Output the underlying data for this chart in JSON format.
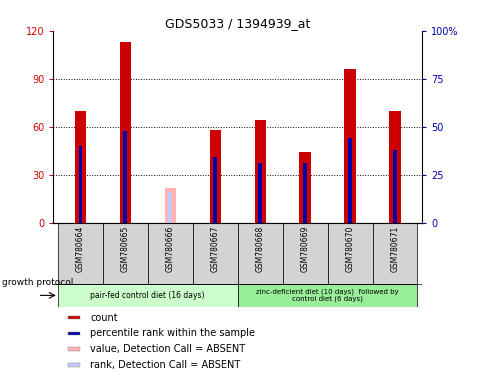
{
  "title": "GDS5033 / 1394939_at",
  "samples": [
    "GSM780664",
    "GSM780665",
    "GSM780666",
    "GSM780667",
    "GSM780668",
    "GSM780669",
    "GSM780670",
    "GSM780671"
  ],
  "count_values": [
    70,
    113,
    null,
    58,
    64,
    44,
    96,
    70
  ],
  "rank_values": [
    40,
    48,
    null,
    34,
    31,
    31,
    44,
    38
  ],
  "absent_count": [
    null,
    null,
    22,
    null,
    null,
    null,
    null,
    null
  ],
  "absent_rank": [
    null,
    null,
    16,
    null,
    null,
    null,
    null,
    null
  ],
  "ylim_left": [
    0,
    120
  ],
  "ylim_right": [
    0,
    100
  ],
  "yticks_left": [
    0,
    30,
    60,
    90,
    120
  ],
  "yticks_right": [
    0,
    25,
    50,
    75,
    100
  ],
  "ytick_labels_left": [
    "0",
    "30",
    "60",
    "90",
    "120"
  ],
  "ytick_labels_right": [
    "0",
    "25",
    "50",
    "75",
    "100%"
  ],
  "count_color": "#cc0000",
  "rank_color": "#0000aa",
  "absent_count_color": "#ffb3b3",
  "absent_rank_color": "#c8c8ff",
  "group1_label": "pair-fed control diet (16 days)",
  "group2_label": "zinc-deficient diet (10 days)  followed by\ncontrol diet (6 days)",
  "group1_color": "#ccffcc",
  "group2_color": "#99ee99",
  "growth_protocol_label": "growth protocol",
  "red_bar_width": 0.25,
  "blue_bar_width": 0.08,
  "legend_items": [
    {
      "color": "#cc0000",
      "label": "count"
    },
    {
      "color": "#0000aa",
      "label": "percentile rank within the sample"
    },
    {
      "color": "#ffb3b3",
      "label": "value, Detection Call = ABSENT"
    },
    {
      "color": "#c8c8ff",
      "label": "rank, Detection Call = ABSENT"
    }
  ]
}
